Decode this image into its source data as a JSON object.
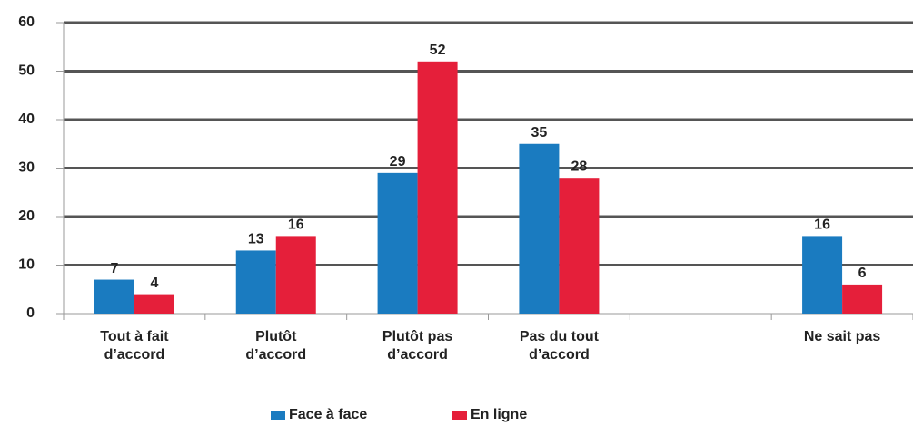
{
  "chart_data": {
    "type": "bar",
    "categories": [
      "Tout à fait d’accord",
      "Plutôt d’accord",
      "Plutôt pas d’accord",
      "Pas du tout d’accord",
      null,
      "Ne sait pas"
    ],
    "series": [
      {
        "name": "Face à face",
        "color": "#1a7bc0",
        "values": [
          7,
          13,
          29,
          35,
          null,
          16
        ]
      },
      {
        "name": "En ligne",
        "color": "#e51f3a",
        "values": [
          4,
          16,
          52,
          28,
          null,
          6
        ]
      }
    ],
    "ylim": [
      0,
      60
    ],
    "yticks": [
      0,
      10,
      20,
      30,
      40,
      50,
      60
    ],
    "grid": true
  }
}
